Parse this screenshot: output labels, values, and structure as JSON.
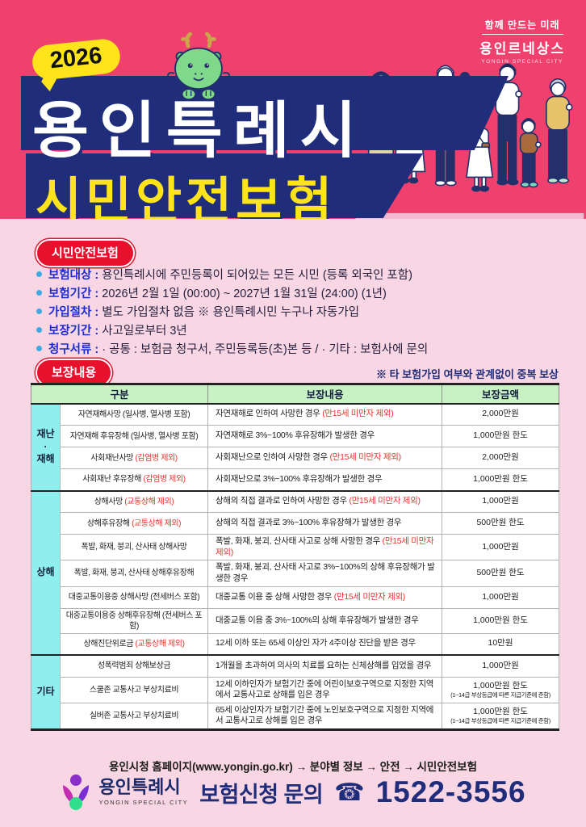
{
  "colors": {
    "banner_pink": "#F0416E",
    "bg_pink": "#F9D6E3",
    "navy": "#1F2D7B",
    "yellow": "#FFE41C",
    "badge_red": "#E8112D",
    "label_blue": "#1B2BD5",
    "table_header_green": "#C9F2C4",
    "group_cyan": "#8FEFEF",
    "alert_red": "#E8332E"
  },
  "hero": {
    "year_badge": "2026",
    "title_line1": "용인특례시",
    "title_line2": "시민안전보험",
    "brand": {
      "tagline": "함께 만드는 미래",
      "name": "용인르네상스",
      "sub": "YONGIN SPECIAL CITY"
    }
  },
  "info": {
    "badge": "시민안전보험",
    "items": [
      {
        "label": "보험대상 :",
        "text": "용인특례시에 주민등록이 되어있는 모든 시민 (등록 외국인 포함)"
      },
      {
        "label": "보험기간 :",
        "text": "2026년 2월 1일 (00:00) ~ 2027년 1월 31일 (24:00) (1년)"
      },
      {
        "label": "가입절차 :",
        "text": "별도 가입절차 없음  ※ 용인특례시민 누구나 자동가입"
      },
      {
        "label": "보장기간 :",
        "text": "사고일로부터 3년"
      },
      {
        "label": "청구서류 :",
        "text": "· 공통 : 보험금 청구서, 주민등록등(초)본 등 / · 기타 : 보험사에 문의"
      }
    ]
  },
  "coverage": {
    "badge": "보장내용",
    "note": "※ 타 보험가입 여부와 관계없이 중복 보상",
    "table": {
      "headers": [
        "구분",
        "보장내용",
        "보장금액"
      ],
      "groups": [
        {
          "name": "재난\n·\n재해",
          "rows": [
            {
              "item": "자연재해사망 (일사병, 열사병 포함)",
              "item_note": "",
              "desc": "자연재해로 인하여 사망한 경우",
              "desc_note": "(만15세 미만자 제외)",
              "amount": "2,000만원",
              "amount_note": ""
            },
            {
              "item": "자연재해 후유장해 (일사병, 열사병 포함)",
              "item_note": "",
              "desc": "자연재해로 3%~100% 후유장해가 발생한 경우",
              "desc_note": "",
              "amount": "1,000만원 한도",
              "amount_note": ""
            },
            {
              "item": "사회재난사망",
              "item_note": "(감염병 제외)",
              "desc": "사회재난으로 인하여 사망한 경우",
              "desc_note": "(만15세 미만자 제외)",
              "amount": "2,000만원",
              "amount_note": ""
            },
            {
              "item": "사회재난 후유장해",
              "item_note": "(감염병 제외)",
              "desc": "사회재난으로 3%~100% 후유장해가 발생한 경우",
              "desc_note": "",
              "amount": "1,000만원 한도",
              "amount_note": ""
            }
          ]
        },
        {
          "name": "상해",
          "rows": [
            {
              "item": "상해사망",
              "item_note": "(교통상해 제외)",
              "desc": "상해의 직접 결과로 인하여 사망한 경우",
              "desc_note": "(만15세 미만자 제외)",
              "amount": "1,000만원",
              "amount_note": ""
            },
            {
              "item": "상해후유장해",
              "item_note": "(교통상해 제외)",
              "desc": "상해의 직접 결과로 3%~100% 후유장해가 발생한 경우",
              "desc_note": "",
              "amount": "500만원 한도",
              "amount_note": ""
            },
            {
              "item": "폭발, 화재, 붕괴, 산사태 상해사망",
              "item_note": "",
              "desc": "폭발, 화재, 붕괴, 산사태 사고로 상해 사망한 경우",
              "desc_note": "(만15세 미만자 제외)",
              "amount": "1,000만원",
              "amount_note": ""
            },
            {
              "item": "폭발, 화재, 붕괴, 산사태 상해후유장해",
              "item_note": "",
              "desc": "폭발, 화재, 붕괴, 산사태 사고로 3%~100%의 상해 후유장해가 발생한 경우",
              "desc_note": "",
              "amount": "500만원 한도",
              "amount_note": ""
            },
            {
              "item": "대중교통이용중 상해사망 (전세버스 포함)",
              "item_note": "",
              "desc": "대중교통 이용 중 상해 사망한 경우",
              "desc_note": "(만15세 미만자 제외)",
              "amount": "1,000만원",
              "amount_note": ""
            },
            {
              "item": "대중교통이용중 상해후유장해 (전세버스 포함)",
              "item_note": "",
              "desc": "대중교통 이용 중 3%~100%의 상해 후유장해가 발생한 경우",
              "desc_note": "",
              "amount": "1,000만원 한도",
              "amount_note": ""
            },
            {
              "item": "상해진단위로금",
              "item_note": "(교통상해 제외)",
              "desc": "12세 이하 또는 65세 이상인 자가 4주이상 진단을 받은 경우",
              "desc_note": "",
              "amount": "10만원",
              "amount_note": ""
            }
          ]
        },
        {
          "name": "기타",
          "rows": [
            {
              "item": "성폭력범죄 상해보상금",
              "item_note": "",
              "desc": "1개월을 초과하여 의사의 치료를 요하는 신체상해를 입었을 경우",
              "desc_note": "",
              "amount": "1,000만원",
              "amount_note": ""
            },
            {
              "item": "스쿨존 교통사고 부상치료비",
              "item_note": "",
              "desc": "12세 이하인자가 보험기간 중에 어린이보호구역으로 지정한 지역에서 교통사고로 상해를 입은 경우",
              "desc_note": "",
              "amount": "1,000만원 한도",
              "amount_note": "(1~14급 부상등급에 따른 지급기준에 준함)"
            },
            {
              "item": "실버존 교통사고 부상치료비",
              "item_note": "",
              "desc": "65세 이상인자가 보험기간 중에 노인보호구역으로 지정한 지역에서 교통사고로 상해를 입은 경우",
              "desc_note": "",
              "amount": "1,000만원 한도",
              "amount_note": "(1~14급 부상등급에 따른 지급기준에 준함)"
            }
          ]
        }
      ]
    }
  },
  "footer": {
    "homepage_path": "용인시청 홈페이지(www.yongin.go.kr) → 분야별 정보 → 안전 → 시민안전보험",
    "city_name": "용인특례시",
    "city_sub": "YONGIN SPECIAL CITY",
    "contact_label": "보험신청 문의",
    "phone": "1522-3556"
  }
}
